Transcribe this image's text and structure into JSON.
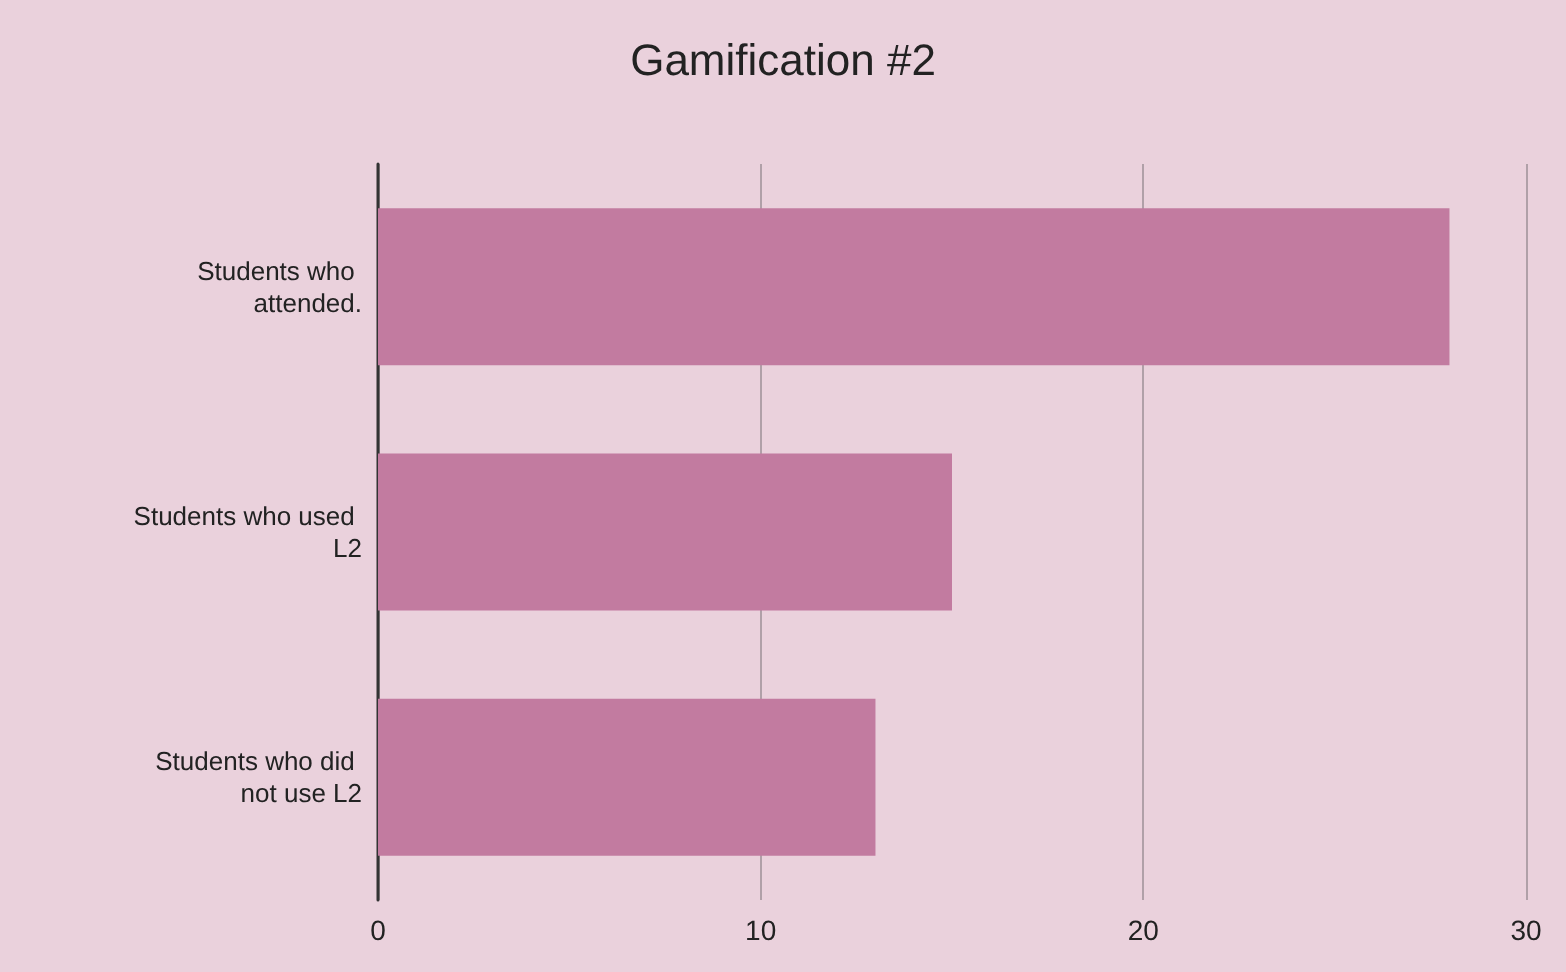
{
  "chart_data": {
    "type": "bar",
    "title": "Gamification #2",
    "orientation": "horizontal",
    "categories": [
      "Students who attended.",
      "Students who used L2",
      "Students who did not use L2"
    ],
    "values": [
      28,
      15,
      13
    ],
    "color": "#c27ba0",
    "xlim": [
      0,
      30
    ],
    "xticks": [
      0,
      10,
      20,
      30
    ],
    "grid": "x"
  }
}
